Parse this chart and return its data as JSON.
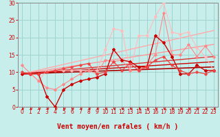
{
  "xlabel": "Vent moyen/en rafales ( km/h )",
  "xlim": [
    -0.5,
    23.5
  ],
  "ylim": [
    0,
    30
  ],
  "xticks": [
    0,
    1,
    2,
    3,
    4,
    5,
    6,
    7,
    8,
    9,
    10,
    11,
    12,
    13,
    14,
    15,
    16,
    17,
    18,
    19,
    20,
    21,
    22,
    23
  ],
  "yticks": [
    0,
    5,
    10,
    15,
    20,
    25,
    30
  ],
  "bg_color": "#c8eeec",
  "grid_color": "#9fd4d0",
  "series": [
    {
      "x": [
        0,
        23
      ],
      "y": [
        9.5,
        22.0
      ],
      "color": "#ffaaaa",
      "lw": 1.0,
      "marker": null
    },
    {
      "x": [
        0,
        23
      ],
      "y": [
        9.5,
        18.0
      ],
      "color": "#ff9999",
      "lw": 1.0,
      "marker": null
    },
    {
      "x": [
        0,
        23
      ],
      "y": [
        9.5,
        14.5
      ],
      "color": "#dd3333",
      "lw": 1.0,
      "marker": null
    },
    {
      "x": [
        0,
        23
      ],
      "y": [
        9.5,
        13.0
      ],
      "color": "#cc0000",
      "lw": 1.0,
      "marker": null
    },
    {
      "x": [
        0,
        23
      ],
      "y": [
        9.5,
        11.5
      ],
      "color": "#aa0000",
      "lw": 1.2,
      "marker": null
    },
    {
      "x": [
        0,
        1,
        2,
        3,
        4,
        5,
        6,
        7,
        8,
        9,
        10,
        11,
        12,
        13,
        14,
        15,
        16,
        17,
        18,
        19,
        20,
        21,
        22,
        23
      ],
      "y": [
        9.5,
        9.5,
        7.5,
        10.5,
        10.5,
        10.5,
        10.5,
        10.5,
        10.5,
        10.5,
        16.5,
        22.5,
        22.0,
        10.5,
        20.5,
        20.5,
        26.0,
        30.0,
        21.5,
        21.0,
        21.5,
        17.0,
        14.5,
        10.5
      ],
      "color": "#ffbbbb",
      "lw": 0.8,
      "marker": "D",
      "ms": 1.8
    },
    {
      "x": [
        0,
        2,
        3,
        4,
        5,
        6,
        7,
        8,
        9,
        10,
        11,
        12,
        13,
        14,
        15,
        16,
        17,
        18,
        19,
        20,
        21,
        22,
        23
      ],
      "y": [
        12.0,
        7.5,
        5.5,
        5.0,
        6.5,
        8.0,
        9.5,
        10.5,
        9.5,
        13.5,
        13.0,
        13.5,
        10.5,
        10.5,
        12.0,
        15.0,
        27.0,
        15.0,
        15.0,
        18.0,
        14.5,
        17.5,
        14.5
      ],
      "color": "#ff8888",
      "lw": 0.8,
      "marker": "D",
      "ms": 1.8
    },
    {
      "x": [
        0,
        1,
        2,
        3,
        4,
        5,
        6,
        7,
        8,
        9,
        10,
        11,
        12,
        13,
        14,
        15,
        16,
        17,
        18,
        19,
        20,
        21,
        22,
        23
      ],
      "y": [
        9.5,
        9.5,
        9.5,
        3.0,
        0.0,
        5.0,
        6.5,
        7.5,
        8.0,
        8.5,
        9.5,
        16.5,
        13.5,
        13.0,
        11.5,
        11.5,
        20.5,
        18.5,
        14.5,
        9.5,
        9.5,
        12.0,
        10.5,
        10.5
      ],
      "color": "#cc0000",
      "lw": 1.0,
      "marker": "D",
      "ms": 2.0
    },
    {
      "x": [
        0,
        1,
        2,
        3,
        4,
        5,
        6,
        7,
        8,
        9,
        10,
        11,
        12,
        13,
        14,
        15,
        16,
        17,
        18,
        19,
        20,
        21,
        22,
        23
      ],
      "y": [
        10.0,
        9.5,
        9.5,
        10.0,
        10.5,
        11.0,
        11.5,
        12.0,
        12.5,
        9.5,
        10.0,
        13.0,
        10.5,
        12.5,
        10.5,
        11.5,
        13.5,
        14.5,
        12.0,
        10.5,
        9.5,
        10.0,
        9.5,
        10.5
      ],
      "color": "#ee4444",
      "lw": 0.9,
      "marker": "D",
      "ms": 1.8
    }
  ],
  "arrow_color": "#cc0000",
  "xlabel_color": "#cc0000",
  "xlabel_fontsize": 7,
  "tick_color": "#cc0000",
  "tick_fontsize": 5.5
}
